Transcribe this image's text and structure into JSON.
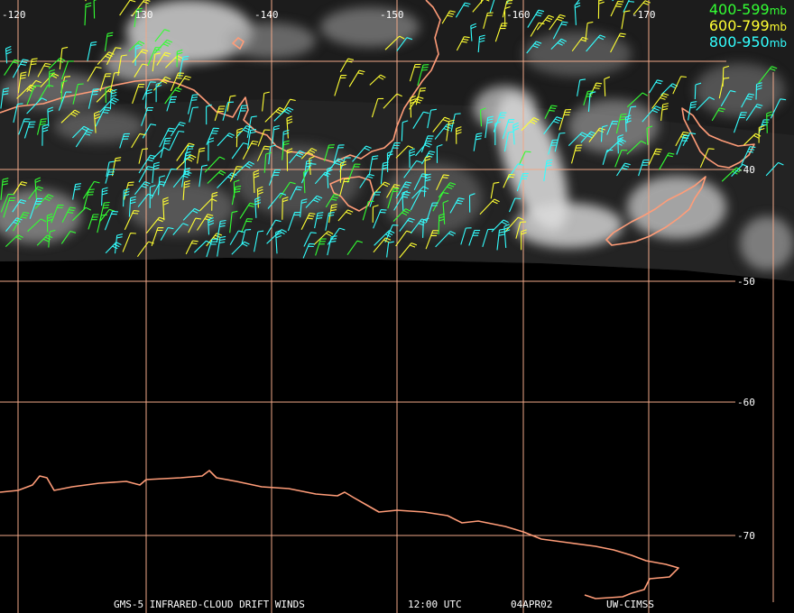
{
  "legend": [
    {
      "range": "400-599",
      "unit": "mb",
      "color": "#33ff33"
    },
    {
      "range": "600-799",
      "unit": "mb",
      "color": "#ffff33"
    },
    {
      "range": "800-950",
      "unit": "mb",
      "color": "#33ffff"
    }
  ],
  "longitude_labels": [
    "-120",
    "-130",
    "-140",
    "-150",
    "-160",
    "-170"
  ],
  "latitude_labels": [
    "-40",
    "-50",
    "-60",
    "-70"
  ],
  "footer": {
    "product": "GMS-5 INFRARED-CLOUD DRIFT WINDS",
    "time": "12:00 UTC",
    "date": "04APR02",
    "source": "UW-CIMSS"
  },
  "colors": {
    "grid": "#f0a888",
    "coast": "#ff9c78",
    "background": "#000000",
    "cloud": "#d8d8d8"
  }
}
